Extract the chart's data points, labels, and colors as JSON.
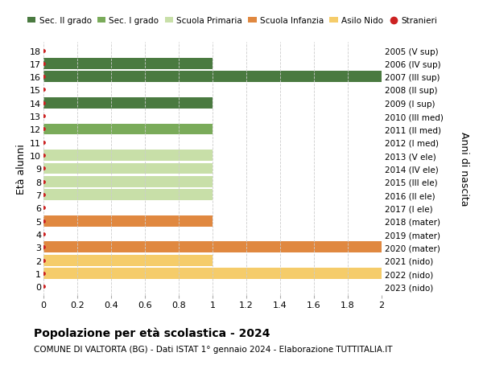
{
  "ages": [
    18,
    17,
    16,
    15,
    14,
    13,
    12,
    11,
    10,
    9,
    8,
    7,
    6,
    5,
    4,
    3,
    2,
    1,
    0
  ],
  "right_labels": [
    "2005 (V sup)",
    "2006 (IV sup)",
    "2007 (III sup)",
    "2008 (II sup)",
    "2009 (I sup)",
    "2010 (III med)",
    "2011 (II med)",
    "2012 (I med)",
    "2013 (V ele)",
    "2014 (IV ele)",
    "2015 (III ele)",
    "2016 (II ele)",
    "2017 (I ele)",
    "2018 (mater)",
    "2019 (mater)",
    "2020 (mater)",
    "2021 (nido)",
    "2022 (nido)",
    "2023 (nido)"
  ],
  "bar_values": [
    0,
    1,
    2,
    0,
    1,
    0,
    1,
    0,
    1,
    1,
    1,
    1,
    0,
    1,
    0,
    2,
    1,
    2,
    0
  ],
  "bar_colors": [
    "#4a7a40",
    "#4a7a40",
    "#4a7a40",
    "#4a7a40",
    "#4a7a40",
    "#7aab5a",
    "#7aab5a",
    "#7aab5a",
    "#c8dfa8",
    "#c8dfa8",
    "#c8dfa8",
    "#c8dfa8",
    "#c8dfa8",
    "#e08840",
    "#e08840",
    "#e08840",
    "#f5cc6a",
    "#f5cc6a",
    "#f5cc6a"
  ],
  "dot_color": "#cc2222",
  "legend_labels": [
    "Sec. II grado",
    "Sec. I grado",
    "Scuola Primaria",
    "Scuola Infanzia",
    "Asilo Nido",
    "Stranieri"
  ],
  "legend_colors": [
    "#4a7a40",
    "#7aab5a",
    "#c8dfa8",
    "#e08840",
    "#f5cc6a",
    "#cc2222"
  ],
  "ylabel_left": "Età alunni",
  "ylabel_right": "Anni di nascita",
  "xlim": [
    0,
    2.0
  ],
  "xticks": [
    0,
    0.2,
    0.4,
    0.6,
    0.8,
    1.0,
    1.2,
    1.4,
    1.6,
    1.8,
    2.0
  ],
  "title_bold": "Popolazione per età scolastica - 2024",
  "subtitle": "COMUNE DI VALTORTA (BG) - Dati ISTAT 1° gennaio 2024 - Elaborazione TUTTITALIA.IT",
  "background_color": "#ffffff",
  "grid_color": "#cccccc",
  "bar_height": 0.85
}
